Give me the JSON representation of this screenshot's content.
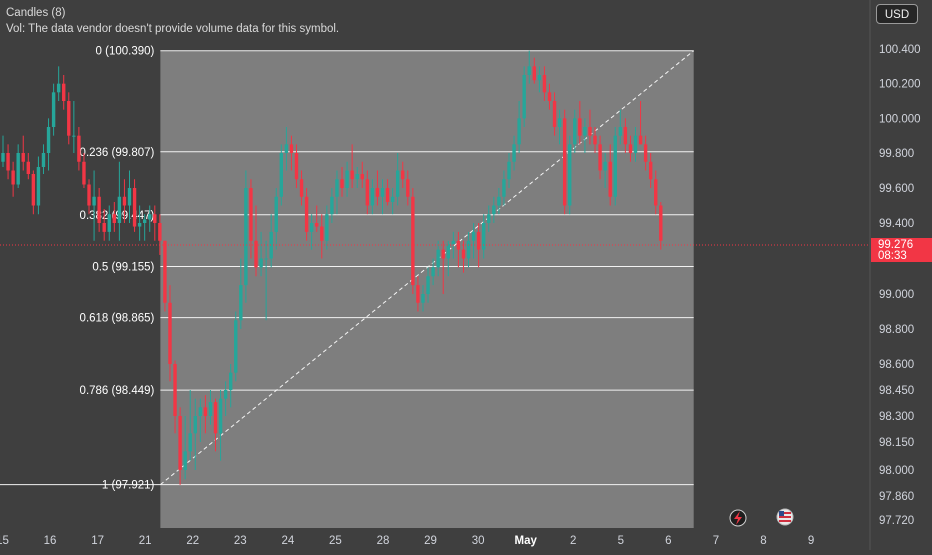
{
  "legend": {
    "title": "Candles (8)",
    "volume_note": "Vol: The data vendor doesn't provide volume data for this symbol."
  },
  "currency": "USD",
  "current_price": {
    "value": "99.276",
    "countdown": "08:33"
  },
  "price_axis": {
    "min": 97.62,
    "max": 100.52,
    "ticks": [
      "100.400",
      "100.200",
      "100.000",
      "99.800",
      "99.600",
      "99.400",
      "99.000",
      "98.800",
      "98.600",
      "98.450",
      "98.300",
      "98.150",
      "98.000",
      "97.860",
      "97.720"
    ]
  },
  "time_axis": {
    "labels": [
      {
        "text": "15",
        "bar": -0.5
      },
      {
        "text": "16",
        "bar": 8.9
      },
      {
        "text": "17",
        "bar": 18.3
      },
      {
        "text": "21",
        "bar": 27.7
      },
      {
        "text": "22",
        "bar": 37.1
      },
      {
        "text": "23",
        "bar": 46.5
      },
      {
        "text": "24",
        "bar": 55.9
      },
      {
        "text": "25",
        "bar": 65.3
      },
      {
        "text": "28",
        "bar": 74.7
      },
      {
        "text": "29",
        "bar": 84.1
      },
      {
        "text": "30",
        "bar": 93.5
      },
      {
        "text": "May",
        "bar": 102.9,
        "bold": true
      },
      {
        "text": "2",
        "bar": 112.3
      },
      {
        "text": "5",
        "bar": 121.7
      },
      {
        "text": "6",
        "bar": 131.1
      },
      {
        "text": "7",
        "bar": 140.5
      },
      {
        "text": "8",
        "bar": 149.9
      },
      {
        "text": "9",
        "bar": 159.3
      }
    ]
  },
  "fibonacci": {
    "high": 100.39,
    "low": 97.921,
    "start_bar": 31.1,
    "end_bar": 136.5,
    "levels": [
      {
        "ratio": 0,
        "price": 100.39,
        "label": "0 (100.390)"
      },
      {
        "ratio": 0.236,
        "price": 99.807,
        "label": "0.236 (99.807)"
      },
      {
        "ratio": 0.382,
        "price": 99.447,
        "label": "0.382 (99.447)"
      },
      {
        "ratio": 0.5,
        "price": 99.155,
        "label": "0.5 (99.155)"
      },
      {
        "ratio": 0.618,
        "price": 98.865,
        "label": "0.618 (98.865)"
      },
      {
        "ratio": 0.786,
        "price": 98.449,
        "label": "0.786 (98.449)"
      },
      {
        "ratio": 1,
        "price": 97.921,
        "label": "1 (97.921)"
      }
    ]
  },
  "colors": {
    "up": "#26a69a",
    "down": "#f23645",
    "background": "#3f3f3f",
    "fib_fill": "#8a8a8a",
    "fib_line": "#f2f2f2",
    "price_tag": "#f23645",
    "text": "#d1d4dc"
  },
  "icons": {
    "replay": "lightning-icon",
    "flag": "us-flag-icon"
  },
  "chart_data": {
    "type": "candlestick",
    "timeframe_note": "Candles (8)",
    "ylim": [
      97.62,
      100.52
    ],
    "x_tick_labels": [
      "15",
      "16",
      "17",
      "21",
      "22",
      "23",
      "24",
      "25",
      "28",
      "29",
      "30",
      "May",
      "2",
      "5",
      "6",
      "7",
      "8",
      "9"
    ],
    "candles": [
      [
        99.75,
        99.9,
        99.72,
        99.8
      ],
      [
        99.8,
        99.85,
        99.65,
        99.7
      ],
      [
        99.7,
        99.75,
        99.55,
        99.62
      ],
      [
        99.62,
        99.85,
        99.6,
        99.8
      ],
      [
        99.8,
        99.9,
        99.7,
        99.75
      ],
      [
        99.75,
        99.8,
        99.65,
        99.68
      ],
      [
        99.68,
        99.7,
        99.45,
        99.5
      ],
      [
        99.5,
        99.78,
        99.45,
        99.72
      ],
      [
        99.72,
        99.85,
        99.68,
        99.8
      ],
      [
        99.8,
        100.0,
        99.7,
        99.95
      ],
      [
        99.95,
        100.2,
        99.9,
        100.15
      ],
      [
        100.15,
        100.3,
        100.1,
        100.2
      ],
      [
        100.2,
        100.25,
        100.05,
        100.1
      ],
      [
        100.1,
        100.15,
        99.85,
        99.9
      ],
      [
        99.9,
        100.1,
        99.8,
        99.9
      ],
      [
        99.9,
        99.95,
        99.7,
        99.75
      ],
      [
        99.75,
        99.8,
        99.6,
        99.62
      ],
      [
        99.62,
        99.65,
        99.45,
        99.5
      ],
      [
        99.5,
        99.7,
        99.3,
        99.55
      ],
      [
        99.55,
        99.6,
        99.35,
        99.4
      ],
      [
        99.4,
        99.48,
        99.3,
        99.35
      ],
      [
        99.35,
        99.5,
        99.3,
        99.45
      ],
      [
        99.45,
        99.52,
        99.35,
        99.4
      ],
      [
        99.4,
        99.75,
        99.3,
        99.55
      ],
      [
        99.55,
        99.65,
        99.4,
        99.5
      ],
      [
        99.5,
        99.7,
        99.4,
        99.6
      ],
      [
        99.6,
        99.65,
        99.35,
        99.38
      ],
      [
        99.38,
        99.5,
        99.3,
        99.4
      ],
      [
        99.4,
        99.45,
        99.3,
        99.42
      ],
      [
        99.42,
        99.5,
        99.35,
        99.45
      ],
      [
        99.45,
        99.5,
        99.3,
        99.4
      ],
      [
        99.4,
        99.45,
        99.22,
        99.3
      ],
      [
        99.3,
        99.3,
        98.9,
        98.95
      ],
      [
        98.95,
        99.05,
        98.5,
        98.6
      ],
      [
        98.6,
        98.62,
        98.2,
        98.3
      ],
      [
        98.3,
        98.35,
        97.92,
        98.0
      ],
      [
        98.0,
        98.3,
        97.95,
        98.1
      ],
      [
        98.1,
        98.45,
        98.05,
        98.2
      ],
      [
        98.2,
        98.4,
        98.0,
        98.3
      ],
      [
        98.3,
        98.4,
        98.15,
        98.35
      ],
      [
        98.35,
        98.42,
        98.2,
        98.3
      ],
      [
        98.3,
        98.45,
        98.25,
        98.38
      ],
      [
        98.38,
        98.4,
        98.1,
        98.2
      ],
      [
        98.2,
        98.45,
        98.05,
        98.4
      ],
      [
        98.4,
        98.5,
        98.3,
        98.45
      ],
      [
        98.45,
        98.6,
        98.35,
        98.55
      ],
      [
        98.55,
        98.9,
        98.5,
        98.85
      ],
      [
        98.85,
        99.2,
        98.8,
        99.05
      ],
      [
        99.05,
        99.7,
        98.95,
        99.6
      ],
      [
        99.6,
        99.65,
        99.2,
        99.3
      ],
      [
        99.3,
        99.5,
        99.1,
        99.15
      ],
      [
        99.15,
        99.35,
        99.1,
        99.2
      ],
      [
        99.2,
        99.3,
        98.85,
        99.2
      ],
      [
        99.2,
        99.45,
        99.15,
        99.35
      ],
      [
        99.35,
        99.6,
        99.25,
        99.55
      ],
      [
        99.55,
        99.85,
        99.5,
        99.8
      ],
      [
        99.8,
        99.95,
        99.7,
        99.85
      ],
      [
        99.85,
        99.9,
        99.7,
        99.8
      ],
      [
        99.8,
        99.85,
        99.6,
        99.65
      ],
      [
        99.65,
        99.7,
        99.5,
        99.55
      ],
      [
        99.55,
        99.6,
        99.3,
        99.35
      ],
      [
        99.35,
        99.45,
        99.25,
        99.4
      ],
      [
        99.4,
        99.5,
        99.35,
        99.38
      ],
      [
        99.38,
        99.45,
        99.2,
        99.3
      ],
      [
        99.3,
        99.5,
        99.25,
        99.45
      ],
      [
        99.45,
        99.6,
        99.4,
        99.55
      ],
      [
        99.55,
        99.7,
        99.45,
        99.65
      ],
      [
        99.65,
        99.72,
        99.55,
        99.6
      ],
      [
        99.6,
        99.75,
        99.55,
        99.7
      ],
      [
        99.7,
        99.85,
        99.6,
        99.65
      ],
      [
        99.65,
        99.72,
        99.6,
        99.68
      ],
      [
        99.68,
        99.75,
        99.6,
        99.65
      ],
      [
        99.65,
        99.7,
        99.45,
        99.5
      ],
      [
        99.5,
        99.65,
        99.45,
        99.6
      ],
      [
        99.6,
        99.7,
        99.5,
        99.55
      ],
      [
        99.55,
        99.65,
        99.45,
        99.6
      ],
      [
        99.6,
        99.65,
        99.5,
        99.52
      ],
      [
        99.52,
        99.6,
        99.45,
        99.55
      ],
      [
        99.55,
        99.8,
        99.5,
        99.7
      ],
      [
        99.7,
        99.75,
        99.6,
        99.65
      ],
      [
        99.65,
        99.7,
        99.5,
        99.55
      ],
      [
        99.55,
        99.6,
        99.0,
        99.05
      ],
      [
        99.05,
        99.1,
        98.9,
        98.95
      ],
      [
        98.95,
        99.05,
        98.9,
        99.0
      ],
      [
        99.0,
        99.15,
        98.95,
        99.1
      ],
      [
        99.1,
        99.2,
        99.05,
        99.15
      ],
      [
        99.15,
        99.3,
        99.1,
        99.25
      ],
      [
        99.25,
        99.3,
        99.0,
        99.2
      ],
      [
        99.2,
        99.3,
        99.1,
        99.28
      ],
      [
        99.28,
        99.35,
        99.2,
        99.3
      ],
      [
        99.3,
        99.35,
        99.15,
        99.25
      ],
      [
        99.25,
        99.3,
        99.12,
        99.2
      ],
      [
        99.2,
        99.35,
        99.15,
        99.3
      ],
      [
        99.3,
        99.4,
        99.2,
        99.35
      ],
      [
        99.35,
        99.4,
        99.15,
        99.25
      ],
      [
        99.25,
        99.45,
        99.2,
        99.4
      ],
      [
        99.4,
        99.5,
        99.35,
        99.45
      ],
      [
        99.45,
        99.55,
        99.4,
        99.5
      ],
      [
        99.5,
        99.6,
        99.45,
        99.55
      ],
      [
        99.55,
        99.7,
        99.5,
        99.65
      ],
      [
        99.65,
        99.8,
        99.6,
        99.75
      ],
      [
        99.75,
        99.9,
        99.7,
        99.85
      ],
      [
        99.85,
        100.1,
        99.8,
        100.0
      ],
      [
        100.0,
        100.3,
        99.95,
        100.25
      ],
      [
        100.25,
        100.39,
        100.2,
        100.3
      ],
      [
        100.3,
        100.35,
        100.2,
        100.22
      ],
      [
        100.22,
        100.3,
        100.15,
        100.25
      ],
      [
        100.25,
        100.3,
        100.1,
        100.15
      ],
      [
        100.15,
        100.2,
        100.05,
        100.1
      ],
      [
        100.1,
        100.15,
        99.9,
        99.95
      ],
      [
        99.95,
        100.05,
        99.85,
        100.0
      ],
      [
        100.0,
        100.05,
        99.45,
        99.5
      ],
      [
        99.5,
        99.9,
        99.45,
        99.85
      ],
      [
        99.85,
        100.05,
        99.8,
        100.0
      ],
      [
        100.0,
        100.1,
        99.85,
        99.9
      ],
      [
        99.9,
        100.0,
        99.8,
        99.95
      ],
      [
        99.95,
        100.05,
        99.85,
        99.9
      ],
      [
        99.9,
        99.95,
        99.8,
        99.85
      ],
      [
        99.85,
        99.9,
        99.65,
        99.7
      ],
      [
        99.7,
        99.8,
        99.6,
        99.75
      ],
      [
        99.75,
        99.85,
        99.5,
        99.55
      ],
      [
        99.55,
        99.95,
        99.5,
        99.9
      ],
      [
        99.9,
        100.05,
        99.85,
        99.95
      ],
      [
        99.95,
        100.0,
        99.8,
        99.85
      ],
      [
        99.85,
        99.9,
        99.75,
        99.8
      ],
      [
        99.8,
        99.95,
        99.75,
        99.9
      ],
      [
        99.9,
        100.1,
        99.85,
        99.85
      ],
      [
        99.85,
        99.9,
        99.7,
        99.75
      ],
      [
        99.75,
        99.8,
        99.6,
        99.65
      ],
      [
        99.65,
        99.7,
        99.45,
        99.5
      ],
      [
        99.5,
        99.52,
        99.25,
        99.3
      ]
    ]
  }
}
